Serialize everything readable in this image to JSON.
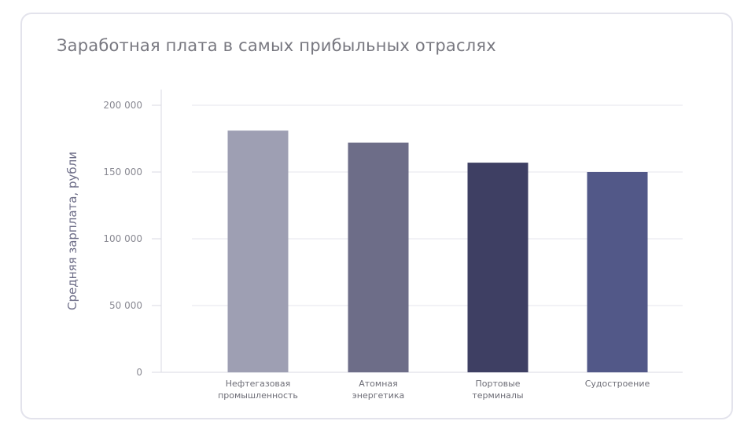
{
  "chart_data": {
    "type": "bar",
    "title": "Заработная плата в самых прибыльных отраслях",
    "xlabel": "",
    "ylabel": "Средняя зарплата, рубли",
    "categories": [
      [
        "Нефтегазовая",
        "промышленность"
      ],
      [
        "Атомная",
        "энергетика"
      ],
      [
        "Портовые",
        "терминалы"
      ],
      [
        "Судостроение"
      ]
    ],
    "values": [
      181000,
      172000,
      157000,
      150000
    ],
    "bar_colors": [
      "#9e9fb3",
      "#6d6d88",
      "#3e3f63",
      "#525888"
    ],
    "ylim": [
      0,
      200000
    ],
    "yticks": [
      0,
      50000,
      100000,
      150000,
      200000
    ],
    "ytick_labels": [
      "0",
      "50 000",
      "100 000",
      "150 000",
      "200 000"
    ],
    "grid": true,
    "legend": "none"
  },
  "colors": {
    "grid": "#e4e4ec",
    "axis": "#dadae3",
    "border": "#e3e3ec"
  }
}
